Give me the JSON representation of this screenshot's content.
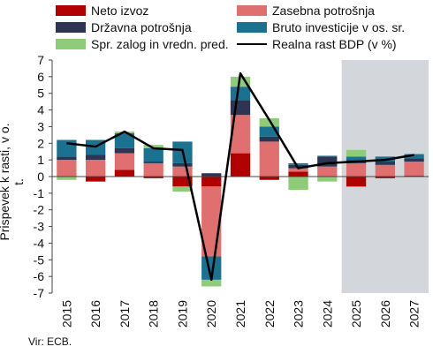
{
  "legend": [
    {
      "key": "neto",
      "label": "Neto izvoz",
      "color": "#b00000",
      "kind": "box"
    },
    {
      "key": "zasebna",
      "label": "Zasebna potrošnja",
      "color": "#e07070",
      "kind": "box"
    },
    {
      "key": "drzavna",
      "label": "Državna potrošnja",
      "color": "#2e3552",
      "kind": "box"
    },
    {
      "key": "bruto",
      "label": "Bruto investicije v os. sr.",
      "color": "#1a7190",
      "kind": "box"
    },
    {
      "key": "zalog",
      "label": "Spr. zalog in vredn. pred.",
      "color": "#8fcc7a",
      "kind": "box"
    },
    {
      "key": "bdp",
      "label": "Realna rast BDP (v %)",
      "color": "#000000",
      "kind": "line"
    }
  ],
  "source": "Vir: ECB.",
  "chart_data": {
    "type": "bar",
    "stacked": true,
    "categories": [
      "2015",
      "2016",
      "2017",
      "2018",
      "2019",
      "2020",
      "2021",
      "2022",
      "2023",
      "2024",
      "2025",
      "2026",
      "2027"
    ],
    "ylabel": "Prispevek k rasti, v o. t.",
    "ylim": [
      -7,
      7
    ],
    "yticks": [
      -7,
      -6,
      -5,
      -4,
      -3,
      -2,
      -1,
      0,
      1,
      2,
      3,
      4,
      5,
      6,
      7
    ],
    "grid": false,
    "projection_shaded_from": "2025",
    "series": [
      {
        "name": "Neto izvoz",
        "color": "#b00000",
        "values": [
          0.0,
          -0.3,
          0.4,
          -0.1,
          -0.6,
          -0.6,
          1.4,
          -0.2,
          0.3,
          0.0,
          -0.6,
          -0.1,
          0.05
        ]
      },
      {
        "name": "Zasebna potrošnja",
        "color": "#e07070",
        "values": [
          1.0,
          1.0,
          1.0,
          0.8,
          0.6,
          -4.2,
          2.3,
          2.1,
          0.2,
          0.6,
          0.8,
          0.7,
          0.85
        ]
      },
      {
        "name": "Državna potrošnja",
        "color": "#2e3552",
        "values": [
          0.2,
          0.3,
          0.3,
          0.1,
          0.2,
          0.2,
          0.9,
          0.3,
          0.2,
          0.6,
          0.2,
          0.2,
          0.2
        ]
      },
      {
        "name": "Bruto investicije v os. sr.",
        "color": "#1a7190",
        "values": [
          1.0,
          0.9,
          0.9,
          0.8,
          1.3,
          -1.4,
          0.8,
          0.6,
          0.1,
          0.05,
          0.2,
          0.3,
          0.25
        ]
      },
      {
        "name": "Spr. zalog in vredn. pred.",
        "color": "#8fcc7a",
        "values": [
          -0.2,
          0.0,
          0.1,
          0.2,
          -0.3,
          -0.4,
          0.6,
          0.5,
          -0.8,
          -0.3,
          0.4,
          0.0,
          0.0
        ]
      }
    ],
    "line": {
      "name": "Realna rast BDP (v %)",
      "color": "#000000",
      "values": [
        2.0,
        1.8,
        2.7,
        1.7,
        1.6,
        -6.2,
        6.2,
        3.4,
        0.5,
        0.8,
        0.9,
        1.0,
        1.3
      ]
    }
  }
}
